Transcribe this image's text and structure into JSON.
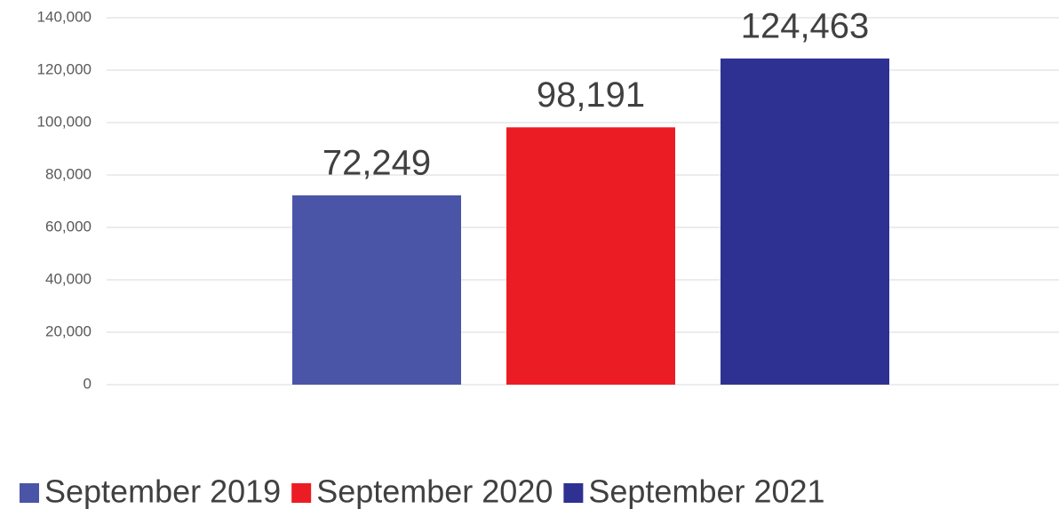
{
  "chart_data": {
    "type": "bar",
    "categories": [
      null
    ],
    "series": [
      {
        "name": "September 2019",
        "color": "#4a55a8",
        "values": [
          72249
        ],
        "value_labels": [
          "72,249"
        ]
      },
      {
        "name": "September 2020",
        "color": "#ec1c24",
        "values": [
          98191
        ],
        "value_labels": [
          "98,191"
        ]
      },
      {
        "name": "September 2021",
        "color": "#2e3192",
        "values": [
          124463
        ],
        "value_labels": [
          "124,463"
        ]
      }
    ],
    "ylim": [
      0,
      140000
    ],
    "yticks": [
      0,
      {
        "value": 20000,
        "label": "20,000"
      },
      {
        "value": 40000,
        "label": "40,000"
      },
      {
        "value": 60000,
        "label": "60,000"
      },
      {
        "value": 80000,
        "label": "80,000"
      },
      {
        "value": 100000,
        "label": "100,000"
      },
      {
        "value": 120000,
        "label": "120,000"
      },
      {
        "value": 140000,
        "label": "140,000"
      }
    ],
    "grid": true,
    "legend": "bottom"
  }
}
